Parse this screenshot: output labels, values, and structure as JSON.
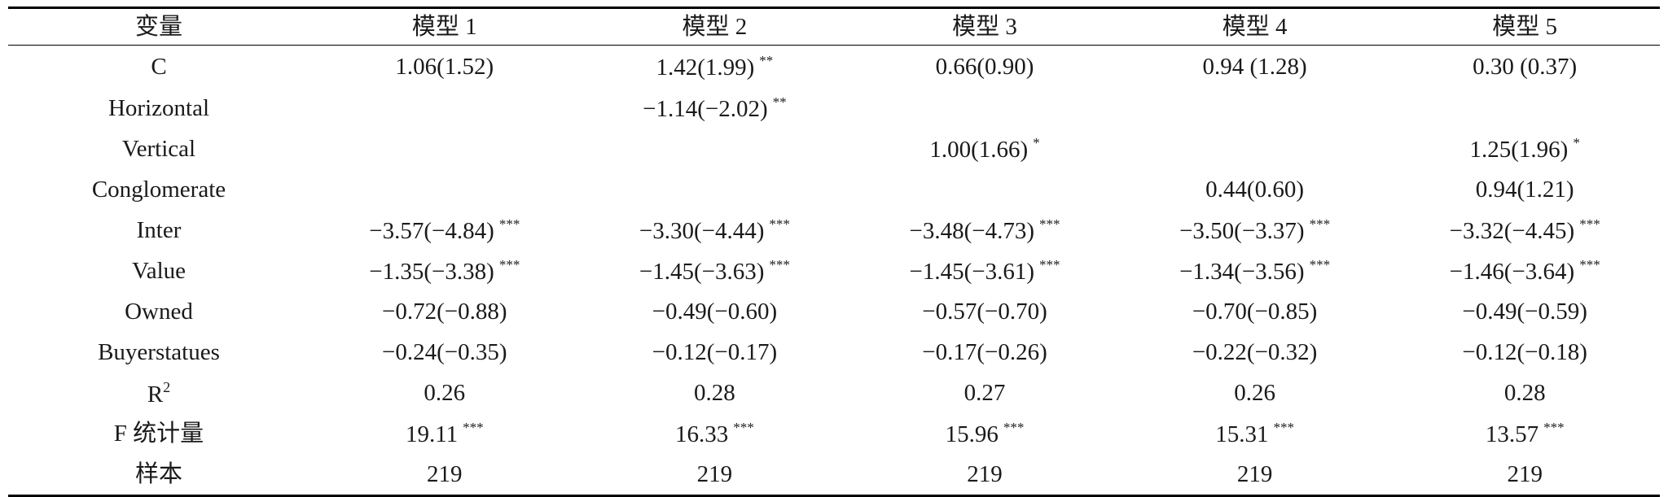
{
  "table": {
    "headers": [
      "变量",
      "模型 1",
      "模型 2",
      "模型 3",
      "模型 4",
      "模型 5"
    ],
    "rows": [
      {
        "label": "C",
        "cells": [
          {
            "v": "1.06(1.52)",
            "s": ""
          },
          {
            "v": "1.42(1.99)",
            "s": "**"
          },
          {
            "v": "0.66(0.90)",
            "s": ""
          },
          {
            "v": "0.94 (1.28)",
            "s": ""
          },
          {
            "v": "0.30 (0.37)",
            "s": ""
          }
        ]
      },
      {
        "label": "Horizontal",
        "cells": [
          {
            "v": "",
            "s": ""
          },
          {
            "v": "−1.14(−2.02)",
            "s": "**"
          },
          {
            "v": "",
            "s": ""
          },
          {
            "v": "",
            "s": ""
          },
          {
            "v": "",
            "s": ""
          }
        ]
      },
      {
        "label": "Vertical",
        "cells": [
          {
            "v": "",
            "s": ""
          },
          {
            "v": "",
            "s": ""
          },
          {
            "v": "1.00(1.66)",
            "s": "*"
          },
          {
            "v": "",
            "s": ""
          },
          {
            "v": "1.25(1.96)",
            "s": "*"
          }
        ]
      },
      {
        "label": "Conglomerate",
        "cells": [
          {
            "v": "",
            "s": ""
          },
          {
            "v": "",
            "s": ""
          },
          {
            "v": "",
            "s": ""
          },
          {
            "v": "0.44(0.60)",
            "s": ""
          },
          {
            "v": "0.94(1.21)",
            "s": ""
          }
        ]
      },
      {
        "label": "Inter",
        "cells": [
          {
            "v": "−3.57(−4.84)",
            "s": "***"
          },
          {
            "v": "−3.30(−4.44)",
            "s": "***"
          },
          {
            "v": "−3.48(−4.73)",
            "s": "***"
          },
          {
            "v": "−3.50(−3.37)",
            "s": "***"
          },
          {
            "v": "−3.32(−4.45)",
            "s": "***"
          }
        ]
      },
      {
        "label": "Value",
        "cells": [
          {
            "v": "−1.35(−3.38)",
            "s": "***"
          },
          {
            "v": "−1.45(−3.63)",
            "s": "***"
          },
          {
            "v": "−1.45(−3.61)",
            "s": "***"
          },
          {
            "v": "−1.34(−3.56)",
            "s": "***"
          },
          {
            "v": "−1.46(−3.64)",
            "s": "***"
          }
        ]
      },
      {
        "label": "Owned",
        "cells": [
          {
            "v": "−0.72(−0.88)",
            "s": ""
          },
          {
            "v": "−0.49(−0.60)",
            "s": ""
          },
          {
            "v": "−0.57(−0.70)",
            "s": ""
          },
          {
            "v": "−0.70(−0.85)",
            "s": ""
          },
          {
            "v": "−0.49(−0.59)",
            "s": ""
          }
        ]
      },
      {
        "label": "Buyerstatues",
        "cells": [
          {
            "v": "−0.24(−0.35)",
            "s": ""
          },
          {
            "v": "−0.12(−0.17)",
            "s": ""
          },
          {
            "v": "−0.17(−0.26)",
            "s": ""
          },
          {
            "v": "−0.22(−0.32)",
            "s": ""
          },
          {
            "v": "−0.12(−0.18)",
            "s": ""
          }
        ]
      },
      {
        "label": "R",
        "label_sup": "2",
        "cells": [
          {
            "v": "0.26",
            "s": ""
          },
          {
            "v": "0.28",
            "s": ""
          },
          {
            "v": "0.27",
            "s": ""
          },
          {
            "v": "0.26",
            "s": ""
          },
          {
            "v": "0.28",
            "s": ""
          }
        ]
      },
      {
        "label": "F 统计量",
        "cells": [
          {
            "v": "19.11",
            "s": "***"
          },
          {
            "v": "16.33",
            "s": "***"
          },
          {
            "v": "15.96",
            "s": "***"
          },
          {
            "v": "15.31",
            "s": "***"
          },
          {
            "v": "13.57",
            "s": "***"
          }
        ]
      },
      {
        "label": "样本",
        "cells": [
          {
            "v": "219",
            "s": ""
          },
          {
            "v": "219",
            "s": ""
          },
          {
            "v": "219",
            "s": ""
          },
          {
            "v": "219",
            "s": ""
          },
          {
            "v": "219",
            "s": ""
          }
        ]
      }
    ]
  }
}
